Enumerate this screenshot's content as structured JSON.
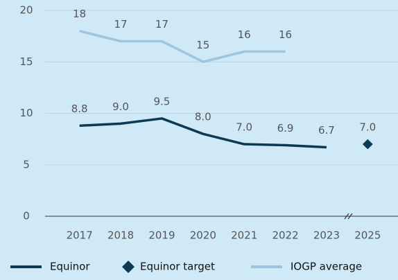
{
  "chart_data": {
    "type": "line",
    "categories": [
      "2017",
      "2018",
      "2019",
      "2020",
      "2021",
      "2022",
      "2023",
      "2025"
    ],
    "series": [
      {
        "name": "Equinor",
        "color": "#0b3a52",
        "values": [
          8.8,
          9.0,
          9.5,
          8.0,
          7.0,
          6.9,
          6.7,
          null
        ],
        "value_labels": [
          "8.8",
          "9.0",
          "9.5",
          "8.0",
          "7.0",
          "6.9",
          "6.7",
          null
        ]
      },
      {
        "name": "Equinor target",
        "color": "#0b3a52",
        "marker": "diamond",
        "values": [
          null,
          null,
          null,
          null,
          null,
          null,
          null,
          7.0
        ],
        "value_labels": [
          null,
          null,
          null,
          null,
          null,
          null,
          null,
          "7.0"
        ]
      },
      {
        "name": "IOGP average",
        "color": "#9fc4de",
        "values": [
          18,
          17,
          17,
          15,
          16,
          16,
          null,
          null
        ]
      }
    ],
    "ylim": [
      0,
      20
    ],
    "yticks": [
      0,
      5,
      10,
      15,
      20
    ],
    "grid": true
  }
}
